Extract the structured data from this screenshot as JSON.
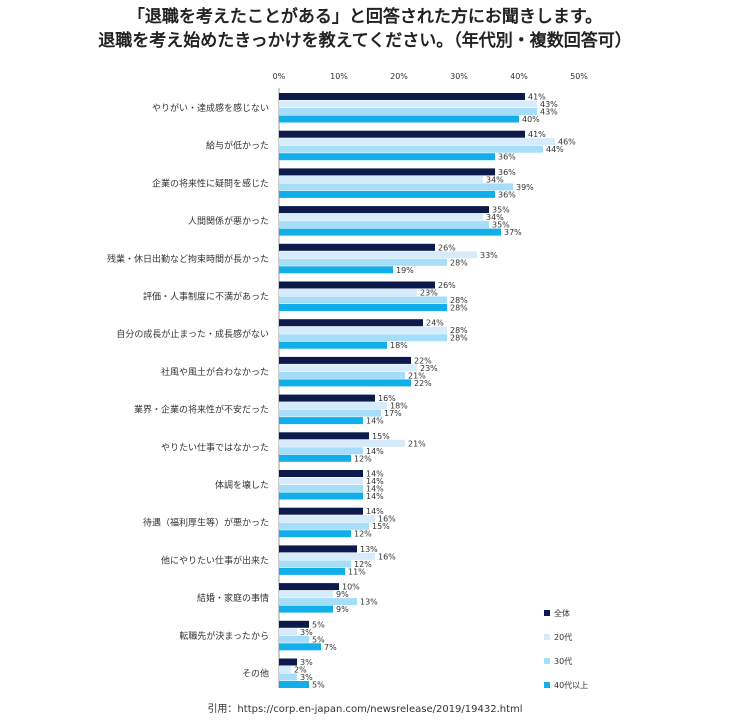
{
  "header": {
    "title_line1": "「退職を考えたことがある」と回答された方にお聞きします。",
    "title_line2": "退職を考え始めたきっかけを教えてください。（年代別・複数回答可）"
  },
  "source": "引用：https://corp.en-japan.com/newsrelease/2019/19432.html",
  "chart_data": {
    "type": "bar",
    "orientation": "horizontal",
    "title": "退職を考え始めたきっかけを教えてください。（年代別・複数回答可）",
    "xlim": [
      0,
      50
    ],
    "ticks": [
      "0%",
      "10%",
      "20%",
      "30%",
      "40%",
      "50%"
    ],
    "tick_values": [
      0,
      10,
      20,
      30,
      40,
      50
    ],
    "legend_position": "bottom-right",
    "categories": [
      "やりがい・達成感を感じない",
      "給与が低かった",
      "企業の将来性に疑問を感じた",
      "人間関係が悪かった",
      "残業・休日出勤など拘束時間が長かった",
      "評価・人事制度に不満があった",
      "自分の成長が止まった・成長感がない",
      "社風や風土が合わなかった",
      "業界・企業の将来性が不安だった",
      "やりたい仕事ではなかった",
      "体調を壊した",
      "待遇（福利厚生等）が悪かった",
      "他にやりたい仕事が出来た",
      "結婚・家庭の事情",
      "転職先が決まったから",
      "その他"
    ],
    "series": [
      {
        "name": "全体",
        "color": "#0d1b4c",
        "values": [
          41,
          41,
          36,
          35,
          26,
          26,
          24,
          22,
          16,
          15,
          14,
          14,
          13,
          10,
          5,
          3
        ]
      },
      {
        "name": "20代",
        "color": "#d6ebfb",
        "values": [
          43,
          46,
          34,
          34,
          33,
          23,
          28,
          23,
          18,
          21,
          14,
          16,
          16,
          9,
          3,
          2
        ]
      },
      {
        "name": "30代",
        "color": "#a6defa",
        "values": [
          43,
          44,
          39,
          35,
          28,
          28,
          28,
          21,
          17,
          14,
          14,
          15,
          12,
          13,
          5,
          3
        ]
      },
      {
        "name": "40代以上",
        "color": "#12aee9",
        "values": [
          40,
          36,
          36,
          37,
          19,
          28,
          18,
          22,
          14,
          12,
          14,
          12,
          11,
          9,
          7,
          5
        ]
      }
    ]
  }
}
